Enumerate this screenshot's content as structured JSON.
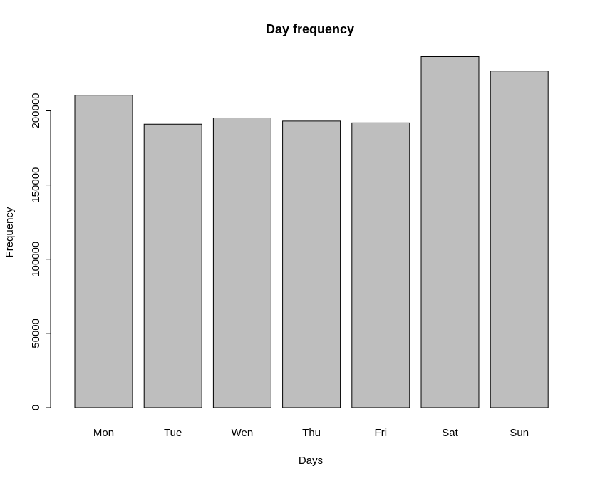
{
  "chart_data": {
    "type": "bar",
    "title": "Day frequency",
    "xlabel": "Days",
    "ylabel": "Frequency",
    "categories": [
      "Mon",
      "Tue",
      "Wen",
      "Thu",
      "Fri",
      "Sat",
      "Sun"
    ],
    "values": [
      210500,
      191000,
      195200,
      193100,
      191900,
      236500,
      226800
    ],
    "ylim": [
      0,
      240000
    ],
    "yticks": [
      0,
      50000,
      100000,
      150000,
      200000
    ],
    "ytick_labels": [
      "0",
      "50000",
      "100000",
      "150000",
      "200000"
    ],
    "bar_color": "#bebebe",
    "bar_border_color": "#000000",
    "grid": false,
    "legend": "none"
  }
}
